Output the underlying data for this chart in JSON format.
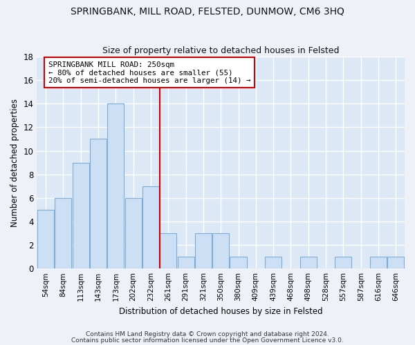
{
  "title1": "SPRINGBANK, MILL ROAD, FELSTED, DUNMOW, CM6 3HQ",
  "title2": "Size of property relative to detached houses in Felsted",
  "xlabel": "Distribution of detached houses by size in Felsted",
  "ylabel": "Number of detached properties",
  "categories": [
    "54sqm",
    "84sqm",
    "113sqm",
    "143sqm",
    "173sqm",
    "202sqm",
    "232sqm",
    "261sqm",
    "291sqm",
    "321sqm",
    "350sqm",
    "380sqm",
    "409sqm",
    "439sqm",
    "468sqm",
    "498sqm",
    "528sqm",
    "557sqm",
    "587sqm",
    "616sqm",
    "646sqm"
  ],
  "values": [
    5,
    6,
    9,
    11,
    14,
    6,
    7,
    3,
    1,
    3,
    3,
    1,
    0,
    1,
    0,
    1,
    0,
    1,
    0,
    1,
    1
  ],
  "bar_color": "#ccdff5",
  "bar_edge_color": "#7badd6",
  "vline_x": 6.5,
  "vline_color": "#cc0000",
  "annotation_text": "SPRINGBANK MILL ROAD: 250sqm\n← 80% of detached houses are smaller (55)\n20% of semi-detached houses are larger (14) →",
  "annotation_box_color": "#ffffff",
  "annotation_box_edge_color": "#cc0000",
  "footer1": "Contains HM Land Registry data © Crown copyright and database right 2024.",
  "footer2": "Contains public sector information licensed under the Open Government Licence v3.0.",
  "ylim": [
    0,
    18
  ],
  "yticks": [
    0,
    2,
    4,
    6,
    8,
    10,
    12,
    14,
    16,
    18
  ],
  "fig_bg_color": "#eef2f8",
  "ax_bg_color": "#dce8f5",
  "grid_color": "#ffffff",
  "title1_fontsize": 10,
  "title2_fontsize": 9,
  "xlabel_fontsize": 8.5,
  "ylabel_fontsize": 8.5,
  "annot_fontsize": 7.8
}
